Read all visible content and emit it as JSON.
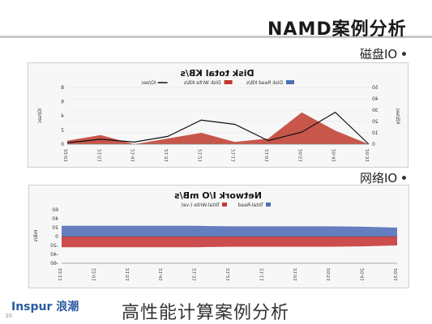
{
  "slide": {
    "title": "NAMD案例分析",
    "bullets": [
      {
        "label": "磁盘IO"
      },
      {
        "label": "网络IO"
      }
    ],
    "footer_title": "高性能计算案例分析",
    "footer_logo": "Inspur 浪潮",
    "page_number": "30"
  },
  "colors": {
    "disk_read": "#4a6fb5",
    "disk_write": "#c0392b",
    "iops_line": "#111111",
    "net_read": "#5470b8",
    "net_write": "#c73a3a"
  },
  "chart_data": [
    {
      "type": "area",
      "title": "Disk total KB/s",
      "legend": [
        "Disk Read KB/s",
        "Disk Write KB/s",
        "IO/sec"
      ],
      "x": [
        "20:31",
        "20:41",
        "20:51",
        "21:01",
        "21:11",
        "21:21",
        "21:31",
        "21:41",
        "21:51",
        "22:01"
      ],
      "series": [
        {
          "name": "Disk Read KB/s",
          "values": [
            0,
            0,
            0,
            0,
            0,
            0,
            0,
            0,
            0,
            0
          ]
        },
        {
          "name": "Disk Write KB/s",
          "values": [
            0,
            12,
            28,
            5,
            2,
            10,
            5,
            0,
            8,
            3
          ]
        },
        {
          "name": "IO/sec",
          "values": [
            0,
            4.5,
            1.7,
            0.5,
            2.8,
            3.4,
            1.1,
            0.3,
            0.7,
            0.2
          ]
        }
      ],
      "ylabel_left": "KB/sec",
      "ylabel_right": "IO/sec",
      "ylim_left": [
        0,
        50
      ],
      "yticks_left": [
        "0",
        "10",
        "20",
        "30",
        "40",
        "50"
      ],
      "ylim_right": [
        0,
        8
      ],
      "yticks_right": [
        "0",
        "2",
        "4",
        "6",
        "8"
      ]
    },
    {
      "type": "area",
      "title": "Network I/O mB/s",
      "legend": [
        "Total-Read",
        "Total-Write (-ve)"
      ],
      "x": [
        "20:31",
        "20:41",
        "20:51",
        "21:01",
        "21:11",
        "21:21",
        "21:31",
        "21:41",
        "21:51",
        "22:01",
        "22:11"
      ],
      "series": [
        {
          "name": "Total-Read",
          "values": [
            20,
            22,
            23,
            23,
            23,
            23,
            24,
            24,
            24,
            24,
            24
          ]
        },
        {
          "name": "Total-Write (-ve)",
          "values": [
            -20,
            -22,
            -23,
            -23,
            -23,
            -23,
            -24,
            -24,
            -24,
            -24,
            -24
          ]
        }
      ],
      "ylabel": "mB/s",
      "ylim": [
        -60,
        60
      ],
      "yticks": [
        "-60",
        "-40",
        "-20",
        "0",
        "20",
        "40",
        "60"
      ]
    }
  ]
}
